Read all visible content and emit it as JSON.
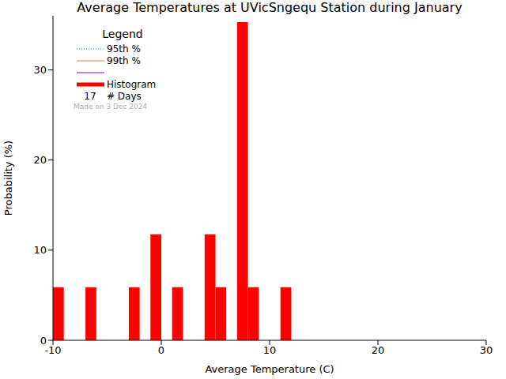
{
  "chart_data": {
    "type": "histogram",
    "title": "Average Temperatures at UVicSngequ Station during January",
    "x_label": "Average Temperature (C)",
    "y_label": "Probability (%)",
    "bins": [
      -10,
      -9,
      -8,
      -7,
      -6,
      -5,
      -4,
      -3,
      -2,
      -1,
      0,
      1,
      2,
      3,
      4,
      5,
      6,
      7,
      8,
      9,
      10,
      11,
      12
    ],
    "values": [
      5.88,
      0,
      0,
      5.88,
      0,
      0,
      0,
      5.88,
      0,
      11.76,
      0,
      5.88,
      0,
      0,
      11.76,
      5.88,
      0,
      35.29,
      5.88,
      0,
      0,
      5.88
    ],
    "color": "#ff0000",
    "xlim": [
      -10,
      30
    ],
    "xticks": [
      -10,
      0,
      10,
      20,
      30
    ],
    "ylim": [
      0,
      36
    ],
    "yticks": [
      0,
      10,
      20,
      30
    ],
    "legend": "upper left",
    "legend_title": "Legend",
    "legend_items": [
      {
        "name": "95th %",
        "color": "#00a0ff",
        "line_style": "dotted"
      },
      {
        "name": "99th %",
        "color": "#b8864b",
        "line_style": "solid"
      },
      {
        "name": null,
        "color": "#8000ff",
        "line_style": "solid"
      },
      {
        "name": "Histogram",
        "color": "#ff0000",
        "line_style": "solid"
      }
    ],
    "days": 17,
    "days_label": "# Days",
    "note": "Made on 3 Dec 2024"
  }
}
